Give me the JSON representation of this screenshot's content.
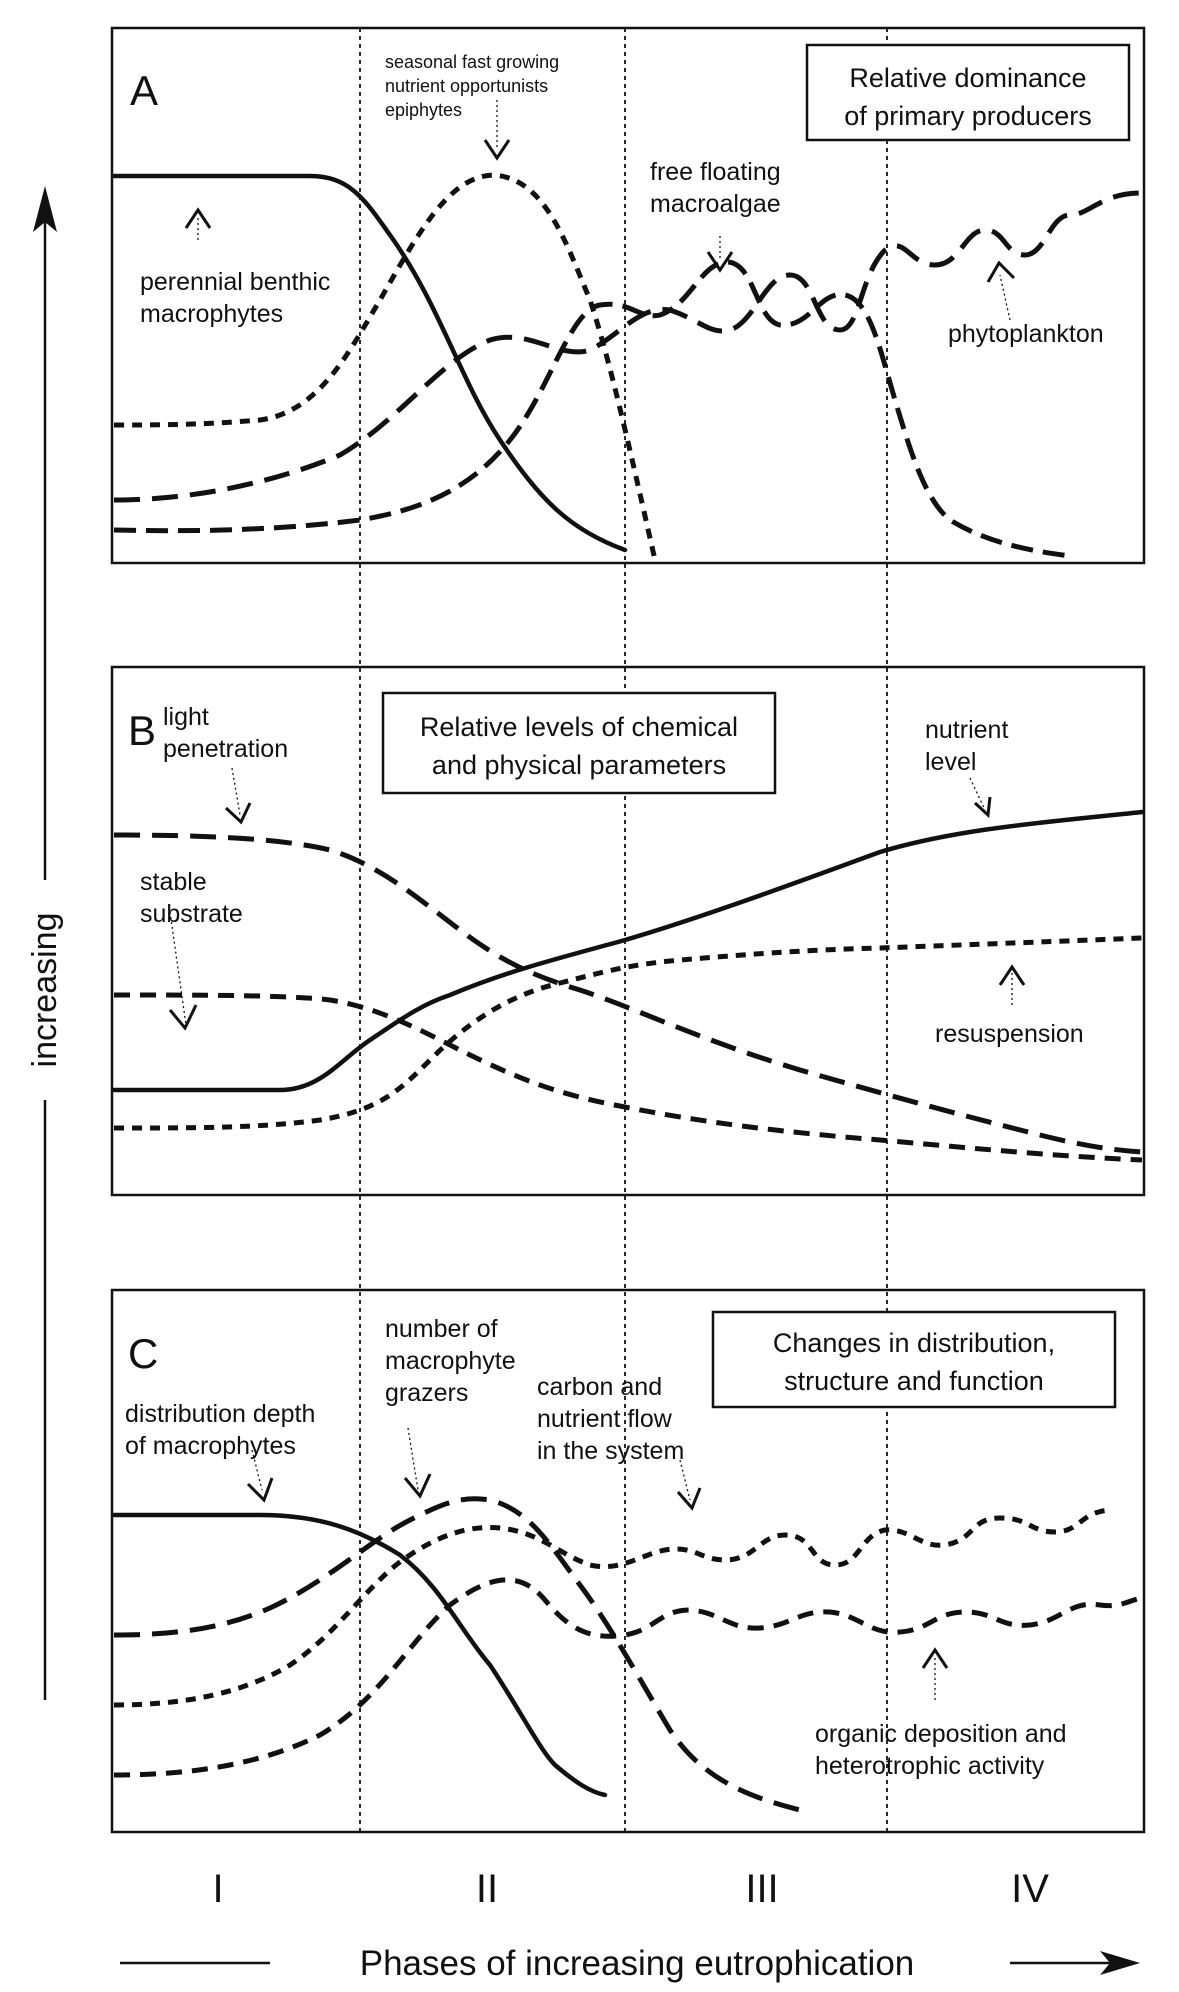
{
  "y_axis_label": "increasing",
  "x_axis_label": "Phases of increasing eutrophication",
  "phases": [
    "I",
    "II",
    "III",
    "IV"
  ],
  "panels": {
    "A": {
      "letter": "A",
      "title_line1": "Relative dominance",
      "title_line2": "of primary producers",
      "labels": {
        "perennial_1": "perennial benthic",
        "perennial_2": "macrophytes",
        "seasonal_1": "seasonal fast growing",
        "seasonal_2": "nutrient opportunists",
        "seasonal_3": "epiphytes",
        "floating_1": "free floating",
        "floating_2": "macroalgae",
        "phytoplankton": "phytoplankton"
      }
    },
    "B": {
      "letter": "B",
      "title_line1": "Relative levels of chemical",
      "title_line2": "and physical parameters",
      "labels": {
        "light_1": "light",
        "light_2": "penetration",
        "stable_1": "stable",
        "stable_2": "substrate",
        "nutrient_1": "nutrient",
        "nutrient_2": "level",
        "resuspension": "resuspension"
      }
    },
    "C": {
      "letter": "C",
      "title_line1": "Changes in distribution,",
      "title_line2": "structure and function",
      "labels": {
        "depth_1": "distribution depth",
        "depth_2": "of macrophytes",
        "grazers_1": "number of",
        "grazers_2": "macrophyte",
        "grazers_3": "grazers",
        "carbon_1": "carbon and",
        "carbon_2": "nutrient flow",
        "carbon_3": "in the system",
        "organic_1": "organic deposition and",
        "organic_2": "heterotrophic activity"
      }
    }
  }
}
